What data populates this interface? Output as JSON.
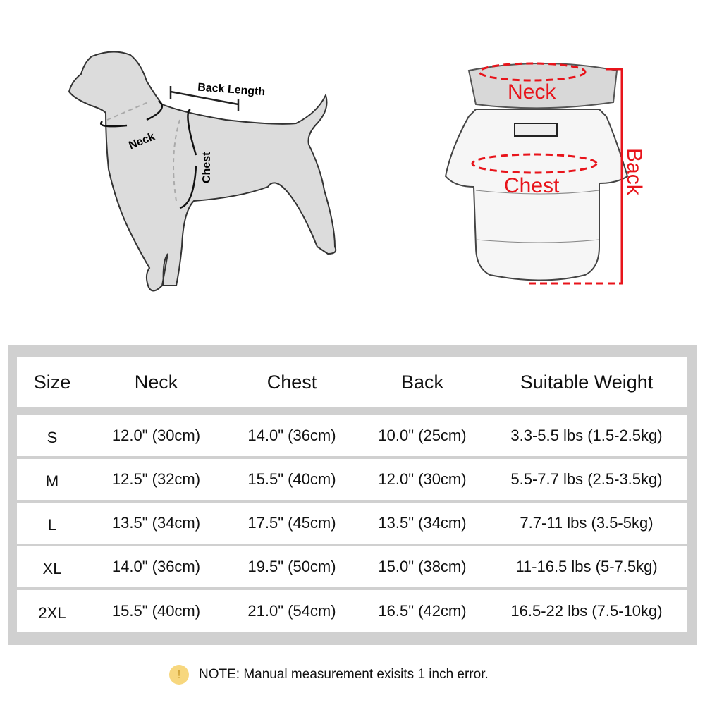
{
  "dog_diagram": {
    "back_length_label": "Back Length",
    "neck_label": "Neck",
    "chest_label": "Chest"
  },
  "coat_diagram": {
    "neck_label": "Neck",
    "chest_label": "Chest",
    "back_label": "Back",
    "accent_color": "#e8141b"
  },
  "table": {
    "headers": [
      "Size",
      "Neck",
      "Chest",
      "Back",
      "Suitable Weight"
    ],
    "rows": [
      [
        "S",
        "12.0\" (30cm)",
        "14.0\" (36cm)",
        "10.0\" (25cm)",
        "3.3-5.5 lbs (1.5-2.5kg)"
      ],
      [
        "M",
        "12.5\" (32cm)",
        "15.5\" (40cm)",
        "12.0\" (30cm)",
        "5.5-7.7 lbs (2.5-3.5kg)"
      ],
      [
        "L",
        "13.5\" (34cm)",
        "17.5\" (45cm)",
        "13.5\" (34cm)",
        "7.7-11 lbs (3.5-5kg)"
      ],
      [
        "XL",
        "14.0\" (36cm)",
        "19.5\" (50cm)",
        "15.0\" (38cm)",
        "11-16.5 lbs (5-7.5kg)"
      ],
      [
        "2XL",
        "15.5\" (40cm)",
        "21.0\" (54cm)",
        "16.5\" (42cm)",
        "16.5-22 lbs (7.5-10kg)"
      ]
    ]
  },
  "note": {
    "icon": "exclamation-icon",
    "icon_glyph": "!",
    "text": "NOTE: Manual measurement exisits 1 inch error."
  }
}
